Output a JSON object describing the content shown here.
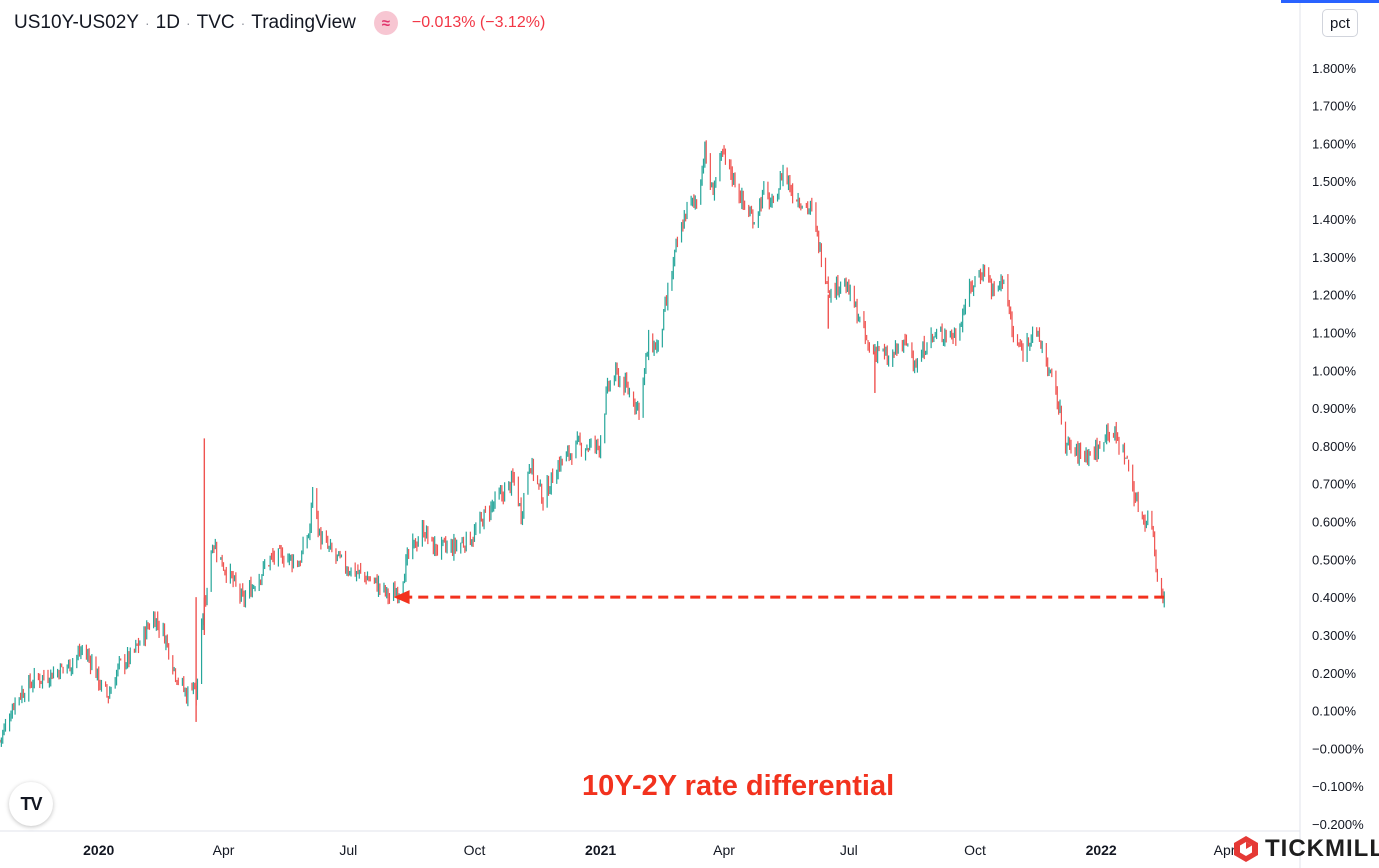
{
  "legend": {
    "symbol": "US10Y-US02Y",
    "interval": "1D",
    "exchange": "TVC",
    "source": "TradingView",
    "change": "−0.013% (−3.12%)",
    "wave_glyph": "≈"
  },
  "price_scale_badge": "pct",
  "annotation_text": "10Y-2Y rate differential",
  "brand": {
    "name": "TICKMILL",
    "icon": "tickmill-logo-icon"
  },
  "tv_logo_icon": "tradingview-logo-icon",
  "tv_logo_text": "TV",
  "colors": {
    "up": "#26a69a",
    "down": "#ef5350",
    "annotation": "#f2321e",
    "accent": "#2962ff"
  },
  "chart_data": {
    "type": "candlestick",
    "title": "",
    "xlabel": "",
    "ylabel": "",
    "ylim": [
      -0.2,
      1.9
    ],
    "y_ticks": [
      1.8,
      1.7,
      1.6,
      1.5,
      1.4,
      1.3,
      1.2,
      1.1,
      1.0,
      0.9,
      0.8,
      0.7,
      0.6,
      0.5,
      0.4,
      0.3,
      0.2,
      0.1,
      0.0,
      -0.1,
      -0.2
    ],
    "y_tick_labels": [
      "1.800%",
      "1.700%",
      "1.600%",
      "1.500%",
      "1.400%",
      "1.300%",
      "1.200%",
      "1.100%",
      "1.000%",
      "0.900%",
      "0.800%",
      "0.700%",
      "0.600%",
      "0.500%",
      "0.400%",
      "0.300%",
      "0.200%",
      "0.100%",
      "−0.000%",
      "−0.100%",
      "−0.200%"
    ],
    "x_range": [
      "2019-10-21",
      "2022-05-26"
    ],
    "x_ticks": [
      {
        "date": "2020-01-01",
        "label": "2020",
        "bold": true
      },
      {
        "date": "2020-04-01",
        "label": "Apr"
      },
      {
        "date": "2020-07-01",
        "label": "Jul"
      },
      {
        "date": "2020-10-01",
        "label": "Oct"
      },
      {
        "date": "2021-01-01",
        "label": "2021",
        "bold": true
      },
      {
        "date": "2021-04-01",
        "label": "Apr"
      },
      {
        "date": "2021-07-01",
        "label": "Jul"
      },
      {
        "date": "2021-10-01",
        "label": "Oct"
      },
      {
        "date": "2022-01-01",
        "label": "2022",
        "bold": true
      },
      {
        "date": "2022-04-01",
        "label": "Apr"
      }
    ],
    "grid": false,
    "series": [
      {
        "name": "US10Y-US02Y",
        "close_path": [
          [
            "2019-10-21",
            0.02
          ],
          [
            "2019-11-01",
            0.13
          ],
          [
            "2019-11-15",
            0.18
          ],
          [
            "2019-11-29",
            0.2
          ],
          [
            "2019-12-10",
            0.22
          ],
          [
            "2019-12-20",
            0.26
          ],
          [
            "2019-12-27",
            0.23
          ],
          [
            "2020-01-03",
            0.16
          ],
          [
            "2020-01-08",
            0.14
          ],
          [
            "2020-01-16",
            0.22
          ],
          [
            "2020-01-24",
            0.24
          ],
          [
            "2020-01-31",
            0.28
          ],
          [
            "2020-02-10",
            0.35
          ],
          [
            "2020-02-18",
            0.3
          ],
          [
            "2020-02-26",
            0.2
          ],
          [
            "2020-03-05",
            0.14
          ],
          [
            "2020-03-10",
            0.18
          ],
          [
            "2020-03-12",
            0.13
          ],
          [
            "2020-03-17",
            0.35
          ],
          [
            "2020-03-19",
            0.4
          ],
          [
            "2020-03-24",
            0.55
          ],
          [
            "2020-03-31",
            0.49
          ],
          [
            "2020-04-08",
            0.44
          ],
          [
            "2020-04-15",
            0.39
          ],
          [
            "2020-04-24",
            0.44
          ],
          [
            "2020-05-05",
            0.5
          ],
          [
            "2020-05-15",
            0.51
          ],
          [
            "2020-05-26",
            0.49
          ],
          [
            "2020-06-03",
            0.58
          ],
          [
            "2020-06-05",
            0.69
          ],
          [
            "2020-06-10",
            0.56
          ],
          [
            "2020-06-18",
            0.52
          ],
          [
            "2020-06-29",
            0.48
          ],
          [
            "2020-07-10",
            0.46
          ],
          [
            "2020-07-20",
            0.44
          ],
          [
            "2020-07-31",
            0.4
          ],
          [
            "2020-08-07",
            0.42
          ],
          [
            "2020-08-14",
            0.51
          ],
          [
            "2020-08-25",
            0.58
          ],
          [
            "2020-09-01",
            0.53
          ],
          [
            "2020-09-15",
            0.53
          ],
          [
            "2020-09-30",
            0.56
          ],
          [
            "2020-10-09",
            0.62
          ],
          [
            "2020-10-23",
            0.68
          ],
          [
            "2020-10-30",
            0.71
          ],
          [
            "2020-11-04",
            0.62
          ],
          [
            "2020-11-10",
            0.76
          ],
          [
            "2020-11-20",
            0.66
          ],
          [
            "2020-12-01",
            0.75
          ],
          [
            "2020-12-15",
            0.8
          ],
          [
            "2020-12-31",
            0.8
          ],
          [
            "2021-01-06",
            0.95
          ],
          [
            "2021-01-12",
            0.99
          ],
          [
            "2021-01-22",
            0.94
          ],
          [
            "2021-01-29",
            0.9
          ],
          [
            "2021-02-05",
            1.07
          ],
          [
            "2021-02-12",
            1.06
          ],
          [
            "2021-02-19",
            1.2
          ],
          [
            "2021-02-25",
            1.32
          ],
          [
            "2021-03-05",
            1.43
          ],
          [
            "2021-03-12",
            1.45
          ],
          [
            "2021-03-18",
            1.58
          ],
          [
            "2021-03-23",
            1.47
          ],
          [
            "2021-03-31",
            1.57
          ],
          [
            "2021-04-09",
            1.5
          ],
          [
            "2021-04-16",
            1.43
          ],
          [
            "2021-04-23",
            1.4
          ],
          [
            "2021-04-30",
            1.47
          ],
          [
            "2021-05-07",
            1.43
          ],
          [
            "2021-05-14",
            1.53
          ],
          [
            "2021-05-21",
            1.47
          ],
          [
            "2021-06-04",
            1.42
          ],
          [
            "2021-06-11",
            1.3
          ],
          [
            "2021-06-18",
            1.2
          ],
          [
            "2021-06-25",
            1.24
          ],
          [
            "2021-07-02",
            1.2
          ],
          [
            "2021-07-09",
            1.13
          ],
          [
            "2021-07-16",
            1.05
          ],
          [
            "2021-07-23",
            1.06
          ],
          [
            "2021-07-30",
            1.02
          ],
          [
            "2021-08-06",
            1.06
          ],
          [
            "2021-08-13",
            1.07
          ],
          [
            "2021-08-20",
            1.01
          ],
          [
            "2021-08-27",
            1.08
          ],
          [
            "2021-09-03",
            1.09
          ],
          [
            "2021-09-10",
            1.1
          ],
          [
            "2021-09-17",
            1.09
          ],
          [
            "2021-09-24",
            1.18
          ],
          [
            "2021-10-01",
            1.24
          ],
          [
            "2021-10-08",
            1.27
          ],
          [
            "2021-10-15",
            1.2
          ],
          [
            "2021-10-22",
            1.25
          ],
          [
            "2021-10-29",
            1.08
          ],
          [
            "2021-11-05",
            1.05
          ],
          [
            "2021-11-12",
            1.11
          ],
          [
            "2021-11-19",
            1.06
          ],
          [
            "2021-11-30",
            0.92
          ],
          [
            "2021-12-07",
            0.8
          ],
          [
            "2021-12-14",
            0.78
          ],
          [
            "2021-12-22",
            0.78
          ],
          [
            "2021-12-31",
            0.79
          ],
          [
            "2022-01-05",
            0.85
          ],
          [
            "2022-01-12",
            0.82
          ],
          [
            "2022-01-19",
            0.77
          ],
          [
            "2022-01-26",
            0.66
          ],
          [
            "2022-01-31",
            0.61
          ],
          [
            "2022-02-07",
            0.6
          ],
          [
            "2022-02-11",
            0.45
          ],
          [
            "2022-02-16",
            0.4
          ]
        ],
        "spikes": [
          {
            "date": "2020-03-12",
            "high": 0.4,
            "low": 0.07
          },
          {
            "date": "2020-03-18",
            "high": 0.82,
            "low": 0.3
          },
          {
            "date": "2021-06-16",
            "high": 1.2,
            "low": 1.11
          },
          {
            "date": "2021-07-20",
            "high": 1.05,
            "low": 0.94
          }
        ]
      }
    ],
    "annotations": [
      {
        "type": "dashed-arrow",
        "from_date": "2022-02-16",
        "to_date": "2020-08-03",
        "value": 0.4
      }
    ]
  }
}
